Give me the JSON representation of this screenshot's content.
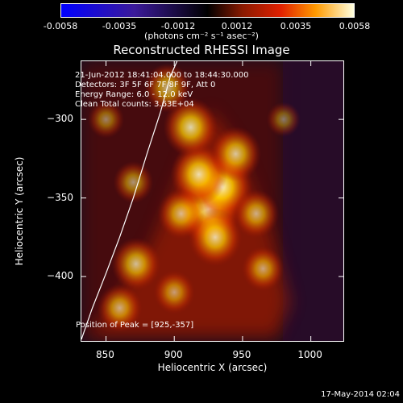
{
  "chart_data": {
    "type": "heatmap",
    "title": "Reconstructed RHESSI Image",
    "xlabel": "Heliocentric X (arcsec)",
    "ylabel": "Heliocentric Y (arcsec)",
    "xlim": [
      832,
      1025
    ],
    "ylim": [
      -442,
      -263
    ],
    "x_ticks": [
      "850",
      "900",
      "950",
      "1000"
    ],
    "x_tick_values": [
      850,
      900,
      950,
      1000
    ],
    "y_ticks": [
      "-300",
      "-350",
      "-400"
    ],
    "y_tick_values": [
      -300,
      -350,
      -400
    ],
    "colorbar": {
      "ticks": [
        "-0.0058",
        "-0.0035",
        "-0.0012",
        "0.0012",
        "0.0035",
        "0.0058"
      ],
      "units": "(photons cm⁻² s⁻¹ asec⁻²)",
      "range": [
        -0.0058,
        0.0058
      ]
    },
    "annotations": {
      "time_range": "21-Jun-2012 18:41:04.000 to 18:44:30.000",
      "detectors": "Detectors: 3F 5F 6F 7F 8F 9F, Att 0",
      "energy": "Energy Range: 6.0 - 12.0 keV",
      "clean": "Clean    Total counts: 3.63E+04",
      "peak": "Position of Peak = [925,-357]"
    },
    "peak_position": [
      925,
      -357
    ],
    "limb_curve_x": [
      832,
      840,
      850,
      860,
      870,
      880,
      890,
      897,
      902
    ],
    "limb_curve_y": [
      -440,
      -420,
      -398,
      -375,
      -350,
      -322,
      -295,
      -273,
      -263
    ],
    "hotspots": [
      {
        "x": 925,
        "y": -357,
        "value": 0.0058
      },
      {
        "x": 935,
        "y": -343,
        "value": 0.0052
      },
      {
        "x": 918,
        "y": -335,
        "value": 0.0045
      },
      {
        "x": 912,
        "y": -305,
        "value": 0.0042
      },
      {
        "x": 945,
        "y": -322,
        "value": 0.0036
      },
      {
        "x": 930,
        "y": -375,
        "value": 0.004
      },
      {
        "x": 905,
        "y": -360,
        "value": 0.003
      },
      {
        "x": 872,
        "y": -392,
        "value": 0.0033
      },
      {
        "x": 860,
        "y": -420,
        "value": 0.0026
      },
      {
        "x": 960,
        "y": -360,
        "value": 0.0027
      },
      {
        "x": 965,
        "y": -395,
        "value": 0.0022
      },
      {
        "x": 895,
        "y": -280,
        "value": 0.0028
      },
      {
        "x": 870,
        "y": -340,
        "value": 0.0018
      },
      {
        "x": 850,
        "y": -300,
        "value": 0.0012
      },
      {
        "x": 980,
        "y": -300,
        "value": 0.0008
      },
      {
        "x": 900,
        "y": -410,
        "value": 0.002
      }
    ]
  },
  "footer": {
    "date": "17-May-2014 02:04"
  }
}
